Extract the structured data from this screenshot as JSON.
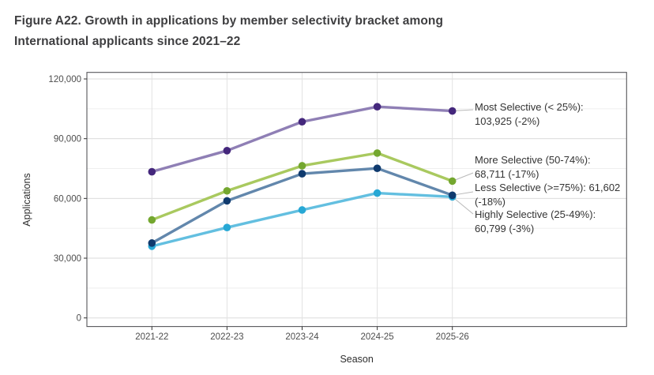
{
  "title": {
    "line1": "Figure A22. Growth in applications by member selectivity bracket among",
    "line2": "International applicants since 2021–22"
  },
  "chart_data": {
    "type": "line",
    "xlabel": "Season",
    "ylabel": "Applications",
    "categories": [
      "2021-22",
      "2022-23",
      "2023-24",
      "2024-25",
      "2025-26"
    ],
    "ylim": [
      0,
      120000
    ],
    "yticks": [
      0,
      30000,
      60000,
      90000,
      120000
    ],
    "ytick_labels": [
      "0",
      "30,000",
      "60,000",
      "90,000",
      "120,000"
    ],
    "yticks_minor": [
      15000,
      45000,
      75000,
      105000
    ],
    "grid": "horizontal major+minor, vertical at each season",
    "legend_position": "inline annotations at right of last points",
    "series": [
      {
        "name": "Most Selective (< 25%)",
        "values": [
          73400,
          84000,
          98500,
          106046,
          103925
        ],
        "final_value": "103,925",
        "change": "-2%",
        "line_color": "#8f7fb5",
        "point_color": "#44277c"
      },
      {
        "name": "More Selective (50-74%)",
        "values": [
          49200,
          63800,
          76400,
          82784,
          68711
        ],
        "final_value": "68,711",
        "change": "-17%",
        "line_color": "#a9c95f",
        "point_color": "#74a72f"
      },
      {
        "name": "Less Selective (>=75%)",
        "values": [
          37600,
          58800,
          72400,
          75124,
          61602
        ],
        "final_value": "61,602",
        "change": "-18%",
        "line_color": "#6287ac",
        "point_color": "#0f3a6e"
      },
      {
        "name": "Highly Selective (25-49%)",
        "values": [
          36000,
          45400,
          54200,
          62679,
          60799
        ],
        "final_value": "60,799",
        "change": "-3%",
        "line_color": "#63bfe0",
        "point_color": "#27a8d5"
      }
    ],
    "annotations": [
      {
        "line1": "Most Selective (< 25%):",
        "line2": "103,925 (-2%)"
      },
      {
        "line1": "More Selective (50-74%):",
        "line2": "68,711 (-17%)"
      },
      {
        "line1": "Less Selective (>=75%): 61,602",
        "line2": "(-18%)"
      },
      {
        "line1": "Highly Selective (25-49%):",
        "line2": "60,799 (-3%)"
      }
    ],
    "colors": {
      "grid_major": "#dbdbdb",
      "grid_minor": "#ededed",
      "grid_vertical": "#e2e2e2",
      "panel_border": "#56565a",
      "leader_line": "#b9b9b9",
      "tick_label": "#4d4d4d",
      "axis_title": "#2e2e2e"
    }
  }
}
